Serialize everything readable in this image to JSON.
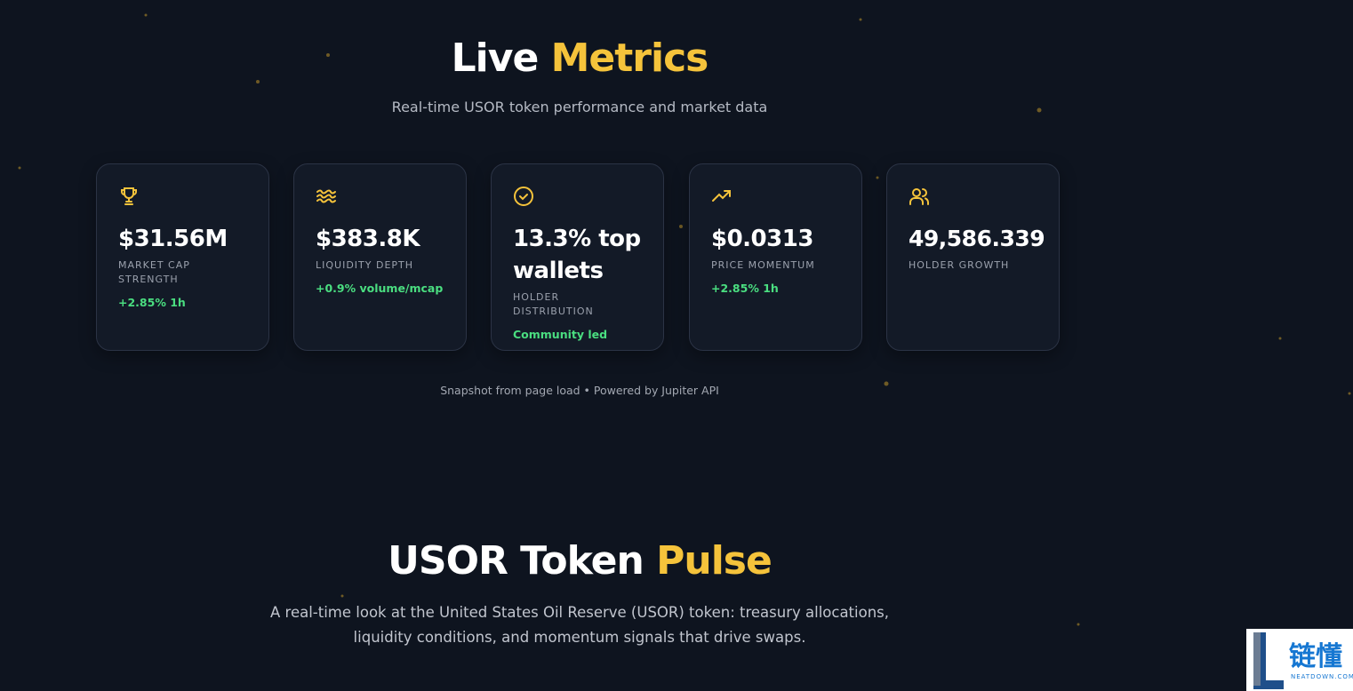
{
  "header": {
    "title": "Live",
    "title_highlight": "Metrics",
    "subtitle": "Real-time USOR token performance and market data"
  },
  "metrics": [
    {
      "value": "$31.56M",
      "label": "MARKET CAP STRENGTH",
      "change": "+2.85% 1h"
    },
    {
      "value": "$383.8K",
      "label": "LIQUIDITY DEPTH",
      "change": "+0.9% volume/mcap"
    },
    {
      "value": "13.3% top wallets",
      "label": "HOLDER DISTRIBUTION",
      "change": "Community led"
    },
    {
      "value": "$0.0313",
      "label": "PRICE MOMENTUM",
      "change": "+2.85% 1h"
    },
    {
      "value": "49,586.339",
      "label": "HOLDER GROWTH"
    }
  ],
  "note": "Snapshot from page load • Powered by Jupiter API",
  "pulse": {
    "title": "USOR Token",
    "title_highlight": "Pulse",
    "description": "A real-time look at the United States Oil Reserve (USOR) token: treasury allocations, liquidity conditions, and momentum signals that drive swaps."
  },
  "watermark": {
    "brand": "链懂",
    "site": "NEATDOWN.COM"
  }
}
